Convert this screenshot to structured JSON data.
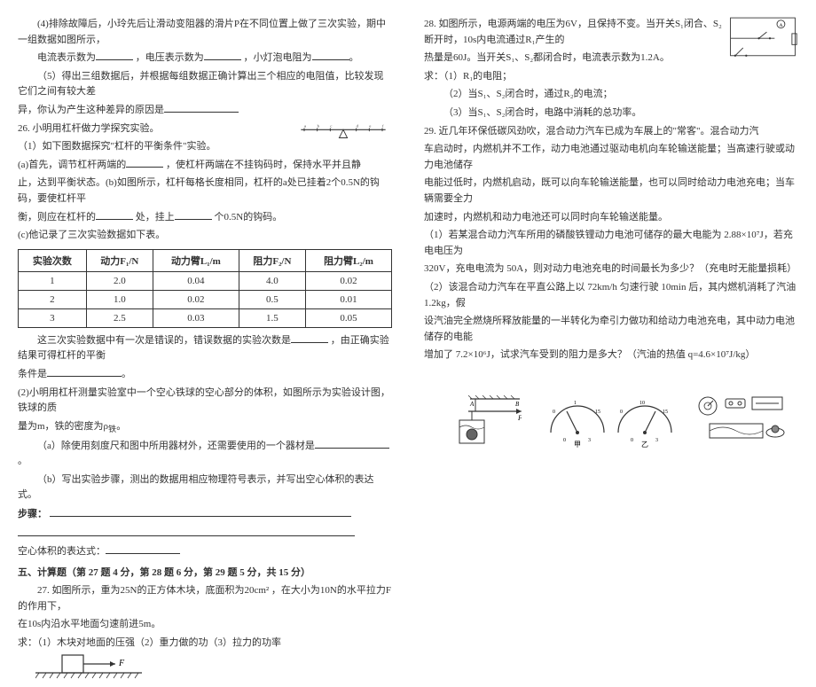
{
  "left": {
    "p4": "(4)排除故障后，小玲先后让滑动变阻器的滑片P在不同位置上做了三次实验，期中一组数据如图所示，",
    "p4b": "电流表示数为",
    "p4c": "，电压表示数为",
    "p4d": "，小灯泡电阻为",
    "p5": "（5）得出三组数据后，并根据每组数据正确计算出三个相应的电阻值，比较发现它们之间有较大差",
    "p5b": "异，你认为产生这种差异的原因是",
    "q26": "26. 小明用杠杆做力学探究实验。",
    "q26_1": "（1）如下图数据探究\"杠杆的平衡条件\"实验。",
    "q26a": "(a)首先，调节杠杆两端的",
    "q26a2": "，使杠杆两端在不挂钩码时，保持水平并且静",
    "q26a3": "止，达到平衡状态。(b)如图所示，杠杆每格长度相同，杠杆的a处已挂着2个0.5N的钩码，要使杠杆平",
    "q26a4": "衡，则应在杠杆的",
    "q26a5": "处，挂上",
    "q26a6": "个0.5N的钩码。",
    "q26c": "(c)他记录了三次实验数据如下表。",
    "table": {
      "headers": [
        "实验次数",
        "动力F₁/N",
        "动力臂L₁/m",
        "阻力F₂/N",
        "阻力臂L₂/m"
      ],
      "rows": [
        [
          "1",
          "2.0",
          "0.04",
          "4.0",
          "0.02"
        ],
        [
          "2",
          "1.0",
          "0.02",
          "0.5",
          "0.01"
        ],
        [
          "3",
          "2.5",
          "0.03",
          "1.5",
          "0.05"
        ]
      ]
    },
    "after_table": "这三次实验数据中有一次是错误的，错误数据的实验次数是",
    "after_table2": "，由正确实验结果可得杠杆的平衡",
    "after_table3": "条件是",
    "q26_2": "(2)小明用杠杆测量实验室中一个空心铁球的空心部分的体积，如图所示为实验设计图，铁球的质",
    "q26_2b": "量为m，铁的密度为ρ",
    "q26_2b_sub": "铁",
    "q26_2b_end": "。",
    "q26_2a": "（a）除使用刻度尺和图中所用器材外，还需要使用的一个器材是",
    "q26_2b2": "（b）写出实验步骤，测出的数据用相应物理符号表示，并写出空心体积的表达式。",
    "step_label": "步骤：",
    "kongxin": "空心体积的表达式：",
    "sec5": "五、计算题（第 27 题 4 分，第 28 题 6 分，第 29 题 5 分，共 15 分）",
    "q27": "27.  如图所示，重为25N的正方体木块，底面积为20cm²  ，在大小为10N的水平拉力F的作用下，",
    "q27b": "在10s内沿水平地面匀速前进5m。",
    "q27c": "求：（1）木块对地面的压强（2）重力做的功（3）拉力的功率",
    "box": {
      "F_label": "F"
    }
  },
  "right": {
    "q28": "28. 如图所示，电源两端的电压为6V，且保持不变。当开关S₁闭合、S₂断开时，10s内电流通过R₁产生的",
    "q28b": "热量是60J。当开关S₁、S₂都闭合时，电流表示数为1.2A。",
    "q28c": "求：（1）R₁的电阻；",
    "q28d": "（2）当S₁、S₂闭合时，通过R₂的电流；",
    "q28e": "（3）当S₁、S₂闭合时，电路中消耗的总功率。",
    "circuit": {
      "A": "A",
      "R2": "R₂",
      "S1": "S₁",
      "S2": "S₂"
    },
    "q29": "29. 近几年环保低碳风劲吹，混合动力汽车已成为车展上的\"常客\"。混合动力汽",
    "q29b": "车启动时，内燃机并不工作，动力电池通过驱动电机向车轮输送能量；当高速行驶或动力电池储存",
    "q29c": "电能过低时，内燃机启动，既可以向车轮输送能量，也可以同时给动力电池充电；当车辆需要全力",
    "q29d": "加速时，内燃机和动力电池还可以同时向车轮输送能量。",
    "q29_1": "（1）若某混合动力汽车所用的磷酸铁锂动力电池可储存的最大电能为 2.88×10⁷J，若充电电压为",
    "q29_1b": "320V，充电电流为 50A，则对动力电池充电的时间最长为多少？（充电时无能量损耗）",
    "q29_2": "（2）该混合动力汽车在平直公路上以 72km/h 匀速行驶 10min 后，其内燃机消耗了汽油 1.2kg，假",
    "q29_2b": "设汽油完全燃烧所释放能量的一半转化为牵引力做功和给动力电池充电，其中动力电池储存的电能",
    "q29_2c": "增加了 7.2×10⁶J，试求汽车受到的阻力是多大？（汽油的热值 q=4.6×10⁷J/kg）",
    "fig_labels": {
      "meter1": "甲",
      "meter2": "乙",
      "ball": "",
      "other": ""
    },
    "ball_fig": {
      "A": "A",
      "B": "B",
      "F": "F"
    }
  }
}
